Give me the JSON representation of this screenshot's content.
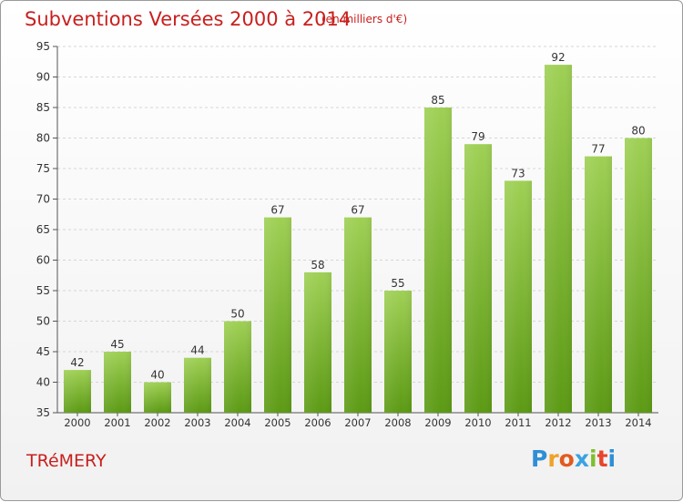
{
  "header": {
    "title": "Subventions Versées 2000 à 2014",
    "subtitle": "(en milliers d'€)"
  },
  "footer": {
    "commune": "TRéMERY",
    "logo_text": "Proxiti"
  },
  "colors": {
    "title": "#c8201e",
    "bar_top": "#9fd055",
    "bar_bottom": "#5c9a14",
    "axis": "#555555",
    "grid": "#d6d6d6"
  },
  "chart_data": {
    "type": "bar",
    "categories": [
      "2000",
      "2001",
      "2002",
      "2003",
      "2004",
      "2005",
      "2006",
      "2007",
      "2008",
      "2009",
      "2010",
      "2011",
      "2012",
      "2013",
      "2014"
    ],
    "values": [
      42,
      45,
      40,
      44,
      50,
      67,
      58,
      67,
      55,
      85,
      79,
      73,
      92,
      77,
      80
    ],
    "ylim": [
      35,
      95
    ],
    "yticks": [
      35,
      40,
      45,
      50,
      55,
      60,
      65,
      70,
      75,
      80,
      85,
      90,
      95
    ],
    "grid": "horizontal dashed",
    "data_labels": true
  }
}
